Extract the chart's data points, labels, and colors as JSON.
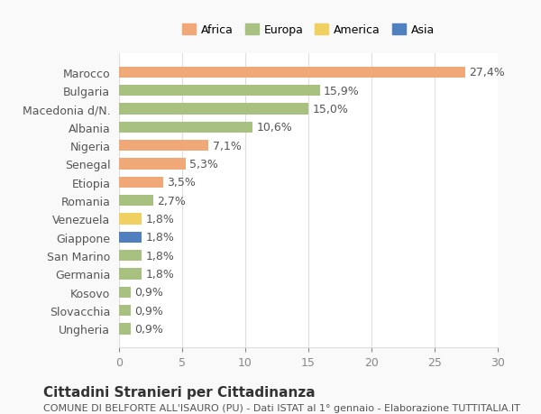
{
  "countries": [
    "Marocco",
    "Bulgaria",
    "Macedonia d/N.",
    "Albania",
    "Nigeria",
    "Senegal",
    "Etiopia",
    "Romania",
    "Venezuela",
    "Giappone",
    "San Marino",
    "Germania",
    "Kosovo",
    "Slovacchia",
    "Ungheria"
  ],
  "values": [
    27.4,
    15.9,
    15.0,
    10.6,
    7.1,
    5.3,
    3.5,
    2.7,
    1.8,
    1.8,
    1.8,
    1.8,
    0.9,
    0.9,
    0.9
  ],
  "labels": [
    "27,4%",
    "15,9%",
    "15,0%",
    "10,6%",
    "7,1%",
    "5,3%",
    "3,5%",
    "2,7%",
    "1,8%",
    "1,8%",
    "1,8%",
    "1,8%",
    "0,9%",
    "0,9%",
    "0,9%"
  ],
  "continents": [
    "Africa",
    "Europa",
    "Europa",
    "Europa",
    "Africa",
    "Africa",
    "Africa",
    "Europa",
    "America",
    "Asia",
    "Europa",
    "Europa",
    "Europa",
    "Europa",
    "Europa"
  ],
  "colors": {
    "Africa": "#F0A878",
    "Europa": "#A8C080",
    "America": "#F0D060",
    "Asia": "#5080C0"
  },
  "legend_order": [
    "Africa",
    "Europa",
    "America",
    "Asia"
  ],
  "legend_colors": [
    "#F0A878",
    "#A8C080",
    "#F0D060",
    "#5080C0"
  ],
  "title": "Cittadini Stranieri per Cittadinanza",
  "subtitle": "COMUNE DI BELFORTE ALL'ISAURO (PU) - Dati ISTAT al 1° gennaio - Elaborazione TUTTITALIA.IT",
  "xlim": [
    0,
    30
  ],
  "xticks": [
    0,
    5,
    10,
    15,
    20,
    25,
    30
  ],
  "background_color": "#f9f9f9",
  "plot_bg_color": "#ffffff",
  "grid_color": "#dddddd",
  "bar_height": 0.6,
  "label_fontsize": 9,
  "tick_fontsize": 9,
  "title_fontsize": 11,
  "subtitle_fontsize": 8
}
